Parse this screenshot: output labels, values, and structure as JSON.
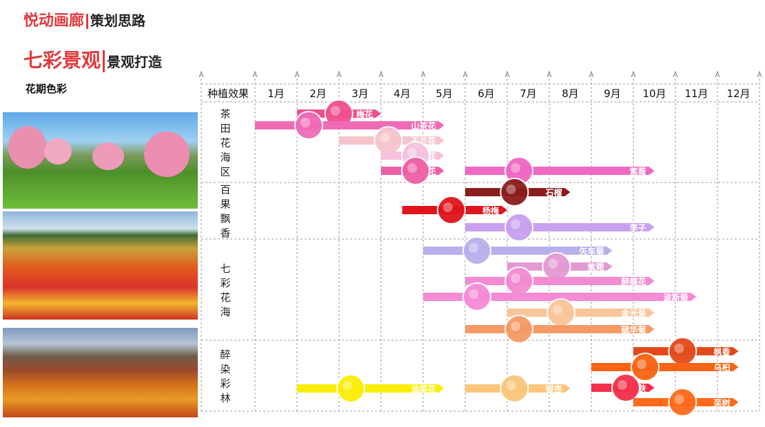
{
  "header": {
    "line1_red": "悦动画廊",
    "line1_black": "策划思路",
    "line2_red": "七彩景观",
    "line2_black": "景观打造"
  },
  "subtitle": "花期色彩",
  "table": {
    "corner_label": "种植效果",
    "months": [
      "1月",
      "2月",
      "3月",
      "4月",
      "5月",
      "6月",
      "7月",
      "8月",
      "9月",
      "10月",
      "11月",
      "12月"
    ],
    "sections": [
      {
        "label": "茶田花海区",
        "bars": [
          {
            "name": "梅花",
            "start": 2,
            "end": 4,
            "color": "#ef4f8e"
          },
          {
            "name": "山茶花",
            "start": 1,
            "end": 5.5,
            "color": "#f06bb6"
          },
          {
            "name": "玉兰花",
            "start": 3,
            "end": 5.5,
            "color": "#f6c4cc"
          },
          {
            "name": "樱花",
            "start": 4,
            "end": 5.5,
            "color": "#f7c0dc"
          },
          {
            "name": "海棠花",
            "start": 4,
            "end": 5.5,
            "color": "#ef5fa5"
          },
          {
            "name": "紫薇",
            "start": 6,
            "end": 10.5,
            "color": "#f067c4"
          }
        ]
      },
      {
        "label": "百果飘香",
        "bars": [
          {
            "name": "石榴",
            "start": 6,
            "end": 8.5,
            "color": "#8b1d1d"
          },
          {
            "name": "杨梅",
            "start": 4.5,
            "end": 7,
            "color": "#e0141c"
          },
          {
            "name": "李子",
            "start": 6,
            "end": 10.5,
            "color": "#c9a0ef"
          }
        ]
      },
      {
        "label": "七彩花海",
        "bars": [
          {
            "name": "矢车菊",
            "start": 5,
            "end": 9.5,
            "color": "#b8b0ec"
          },
          {
            "name": "紫菀",
            "start": 7,
            "end": 9.5,
            "color": "#e29ad4"
          },
          {
            "name": "醉蝶花",
            "start": 6,
            "end": 10.5,
            "color": "#f38bd0"
          },
          {
            "name": "波斯菊",
            "start": 5,
            "end": 11.5,
            "color": "#f48bd6"
          },
          {
            "name": "金光菊",
            "start": 7,
            "end": 10.5,
            "color": "#f9c59a"
          },
          {
            "name": "硫华菊",
            "start": 6,
            "end": 10.5,
            "color": "#f59a65"
          }
        ]
      },
      {
        "label": "醉染彩林",
        "bars": [
          {
            "name": "枫香",
            "start": 10,
            "end": 12.5,
            "color": "#e34a1c"
          },
          {
            "name": "乌桕",
            "start": 9,
            "end": 12.5,
            "color": "#f86414"
          },
          {
            "name": "地肤",
            "start": 9,
            "end": 10.5,
            "color": "#f2304a"
          },
          {
            "name": "栾树",
            "start": 10,
            "end": 12.5,
            "color": "#ff6a1a"
          },
          {
            "name": "油菜花",
            "start": 2,
            "end": 5.5,
            "color": "#fbee06"
          },
          {
            "name": "银杏",
            "start": 6,
            "end": 8.5,
            "color": "#fbc67b"
          }
        ]
      }
    ]
  }
}
